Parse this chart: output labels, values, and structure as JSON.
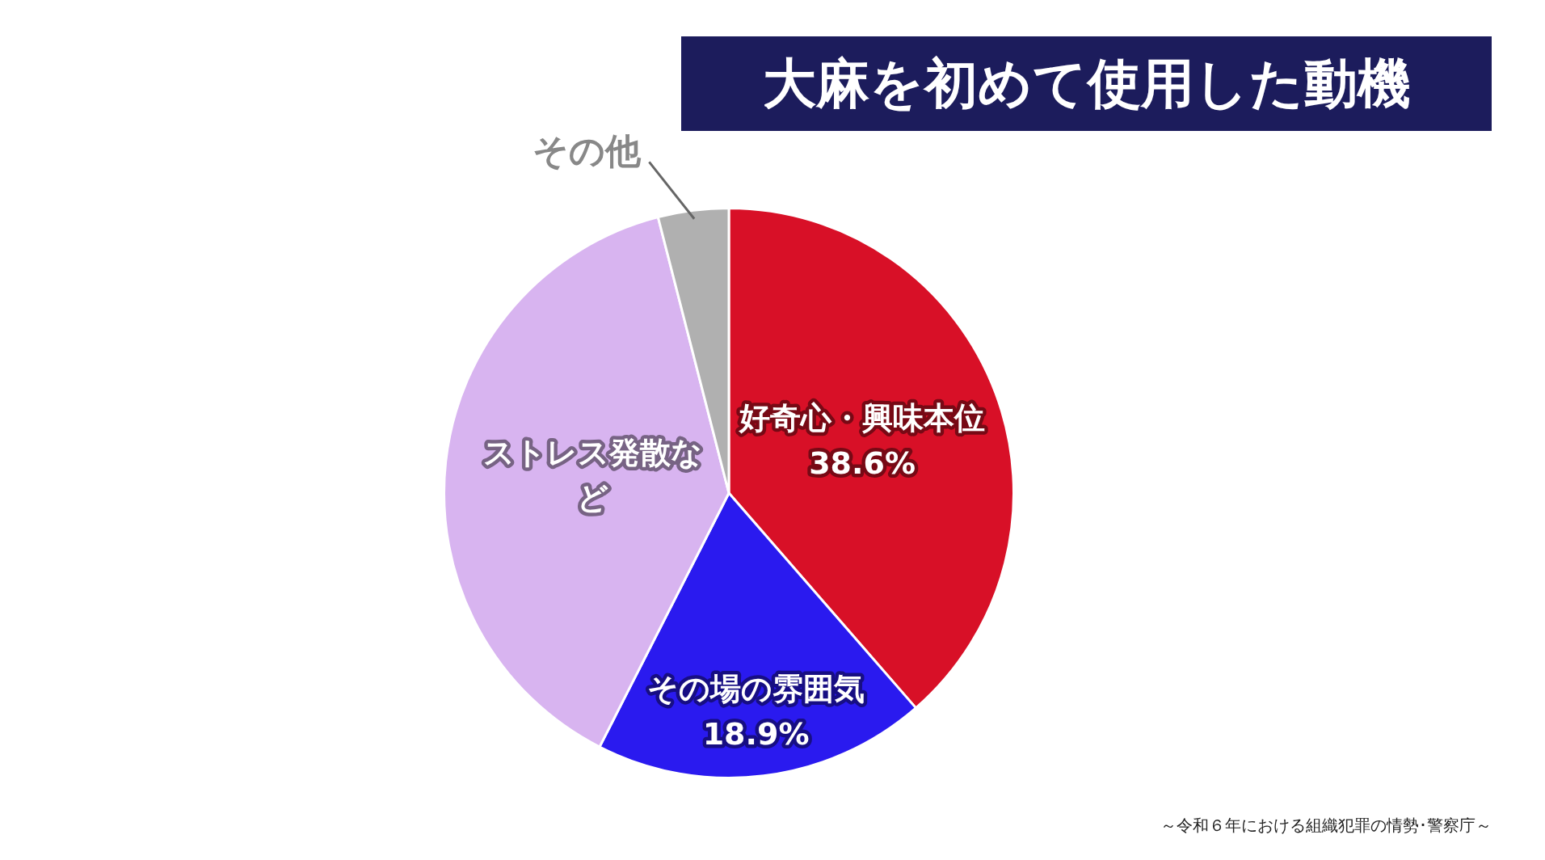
{
  "chart_data": {
    "type": "pie",
    "title": "大麻を初めて使用した動機",
    "categories": [
      "好奇心・興味本位",
      "その場の雰囲気",
      "ストレス発散など",
      "その他"
    ],
    "values": [
      38.6,
      18.9,
      38.5,
      4.0
    ],
    "value_labels": [
      "38.6%",
      "18.9%",
      null,
      null
    ],
    "colors": [
      "#d81027",
      "#2a1aef",
      "#d8b4f0",
      "#b0b0b0"
    ],
    "legend": false,
    "annotations": [
      "～令和６年における組織犯罪の情勢･警察庁～"
    ]
  }
}
